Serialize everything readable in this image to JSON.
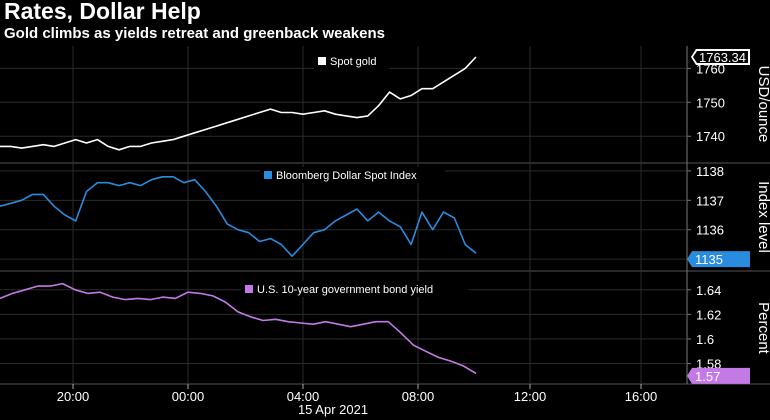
{
  "header": {
    "title": "Rates, Dollar Help",
    "subtitle": "Gold climbs as yields retreat and greenback weakens"
  },
  "x_axis": {
    "tick_labels": [
      "20:00",
      "00:00",
      "04:00",
      "08:00",
      "12:00",
      "16:00"
    ],
    "date_label": "15 Apr 2021"
  },
  "chart_data": [
    {
      "type": "line",
      "series": [
        {
          "name": "Spot gold",
          "color": "#ffffff",
          "values": [
            1737,
            1737,
            1736.5,
            1737,
            1737.5,
            1737,
            1738,
            1739,
            1738,
            1739,
            1737,
            1736,
            1737,
            1737,
            1738,
            1738.5,
            1739,
            1740,
            1741,
            1742,
            1743,
            1744,
            1745,
            1746,
            1747,
            1748,
            1747,
            1747,
            1746.5,
            1747,
            1747.5,
            1746.5,
            1746,
            1745.5,
            1746,
            1749,
            1753,
            1751,
            1752,
            1754,
            1754,
            1756,
            1758,
            1760,
            1763.34
          ]
        }
      ],
      "ylabel": "USD/ounce",
      "yticks": [
        1740,
        1750,
        1760
      ],
      "ylim": [
        1733,
        1766
      ],
      "last_value": "1763.34"
    },
    {
      "type": "line",
      "series": [
        {
          "name": "Bloomberg Dollar Spot Index",
          "color": "#2a8cde",
          "values": [
            1136.8,
            1136.9,
            1137.0,
            1137.2,
            1137.2,
            1136.8,
            1136.5,
            1136.3,
            1137.3,
            1137.6,
            1137.6,
            1137.5,
            1137.6,
            1137.5,
            1137.7,
            1137.8,
            1137.8,
            1137.6,
            1137.7,
            1137.3,
            1136.8,
            1136.2,
            1136.0,
            1135.9,
            1135.6,
            1135.7,
            1135.5,
            1135.1,
            1135.5,
            1135.9,
            1136.0,
            1136.3,
            1136.5,
            1136.7,
            1136.3,
            1136.6,
            1136.3,
            1136.1,
            1135.5,
            1136.6,
            1136.0,
            1136.6,
            1136.4,
            1135.5,
            1135.2
          ]
        }
      ],
      "ylabel": "Index level",
      "yticks": [
        1135,
        1136,
        1137,
        1138
      ],
      "ylim": [
        1134.7,
        1138.2
      ],
      "last_value": "1135"
    },
    {
      "type": "line",
      "series": [
        {
          "name": "U.S. 10-year government bond yield",
          "color": "#c47ae6",
          "values": [
            1.633,
            1.637,
            1.64,
            1.643,
            1.643,
            1.645,
            1.64,
            1.637,
            1.638,
            1.634,
            1.632,
            1.633,
            1.632,
            1.634,
            1.633,
            1.638,
            1.637,
            1.635,
            1.63,
            1.622,
            1.618,
            1.615,
            1.616,
            1.614,
            1.613,
            1.612,
            1.614,
            1.612,
            1.61,
            1.612,
            1.614,
            1.614,
            1.605,
            1.595,
            1.59,
            1.585,
            1.582,
            1.578,
            1.572
          ]
        }
      ],
      "ylabel": "Percent",
      "yticks": [
        1.58,
        1.6,
        1.62,
        1.64
      ],
      "ylim": [
        1.565,
        1.652
      ],
      "last_value": "1.57"
    }
  ]
}
